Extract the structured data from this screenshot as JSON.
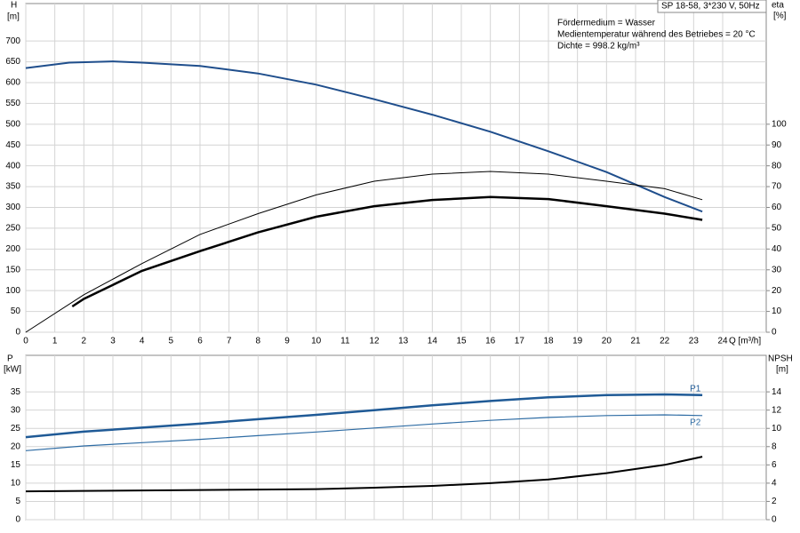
{
  "chart_data": [
    {
      "type": "line",
      "title": "SP 18-58, 3*230 V, 50Hz",
      "annotations": [
        "Fördermedium = Wasser",
        "Medientemperatur während des Betriebes = 20 °C",
        "Dichte = 998.2 kg/m³"
      ],
      "xlabel": "Q [m³/h]",
      "ylabel": "H",
      "yunit": "[m]",
      "y2label": "eta",
      "y2unit": "[%]",
      "xlim": [
        0,
        25.5
      ],
      "xticks": [
        0,
        1,
        2,
        3,
        4,
        5,
        6,
        7,
        8,
        9,
        10,
        11,
        12,
        13,
        14,
        15,
        16,
        17,
        18,
        19,
        20,
        21,
        22,
        23,
        24
      ],
      "ylim": [
        0,
        790
      ],
      "yticks": [
        0,
        50,
        100,
        150,
        200,
        250,
        300,
        350,
        400,
        450,
        500,
        550,
        600,
        650,
        700
      ],
      "y2lim": [
        0,
        158
      ],
      "y2ticks": [
        0,
        10,
        20,
        30,
        40,
        50,
        60,
        70,
        80,
        90,
        100
      ],
      "grid": true,
      "series": [
        {
          "color": "#1f4e8c",
          "linewidth": 2,
          "x": [
            0,
            1.5,
            3,
            4,
            6,
            8,
            10,
            12,
            14,
            16,
            18,
            20,
            21,
            22,
            23.3
          ],
          "values": [
            635,
            648,
            651,
            648,
            640,
            622,
            595,
            560,
            523,
            482,
            435,
            385,
            355,
            325,
            290
          ]
        },
        {
          "color": "#000000",
          "linewidth": 1,
          "axis": "y2",
          "x": [
            0,
            2,
            4,
            6,
            8,
            10,
            12,
            14,
            16,
            18,
            20,
            22,
            23.3
          ],
          "values": [
            0,
            18,
            33,
            47,
            57,
            66,
            72.6,
            76,
            77.3,
            76,
            72.6,
            69,
            63.7
          ]
        },
        {
          "color": "#000000",
          "linewidth": 2.5,
          "axis": "y2",
          "x": [
            1.6,
            2,
            4,
            6,
            8,
            10,
            12,
            14,
            16,
            18,
            20,
            22,
            23.3
          ],
          "values": [
            12.4,
            16,
            29.5,
            39,
            48,
            55.5,
            60.6,
            63.6,
            65,
            64,
            60.6,
            57,
            54
          ]
        }
      ]
    },
    {
      "type": "line",
      "ylabel": "P",
      "yunit": "[kW]",
      "y2label": "NPSH",
      "y2unit": "[m]",
      "xlim": [
        0,
        25.5
      ],
      "ylim": [
        0,
        45
      ],
      "yticks": [
        0,
        5,
        10,
        15,
        20,
        25,
        30,
        35
      ],
      "y2lim": [
        0,
        18
      ],
      "y2ticks": [
        0,
        2,
        4,
        6,
        8,
        10,
        12,
        14
      ],
      "grid": true,
      "series": [
        {
          "name": "P1",
          "color": "#1f5a96",
          "linewidth": 2.5,
          "x": [
            0,
            2,
            4,
            6,
            8,
            10,
            12,
            14,
            16,
            18,
            20,
            22,
            23.3
          ],
          "values": [
            22.6,
            24.1,
            25.2,
            26.3,
            27.5,
            28.7,
            30,
            31.3,
            32.5,
            33.5,
            34.1,
            34.3,
            34.1
          ]
        },
        {
          "name": "P2",
          "color": "#2e6ca4",
          "linewidth": 1.2,
          "x": [
            0,
            2,
            4,
            6,
            8,
            10,
            12,
            14,
            16,
            18,
            20,
            22,
            23.3
          ],
          "values": [
            18.9,
            20.2,
            21.1,
            22,
            23,
            24,
            25.1,
            26.2,
            27.2,
            28,
            28.5,
            28.7,
            28.5
          ]
        },
        {
          "color": "#000000",
          "linewidth": 2,
          "axis": "y2",
          "x": [
            0,
            2,
            4,
            6,
            8,
            10,
            12,
            14,
            16,
            18,
            20,
            22,
            23.3
          ],
          "values": [
            3.1,
            3.15,
            3.2,
            3.25,
            3.3,
            3.35,
            3.5,
            3.7,
            4.0,
            4.4,
            5.1,
            6.0,
            6.9
          ]
        }
      ]
    }
  ]
}
